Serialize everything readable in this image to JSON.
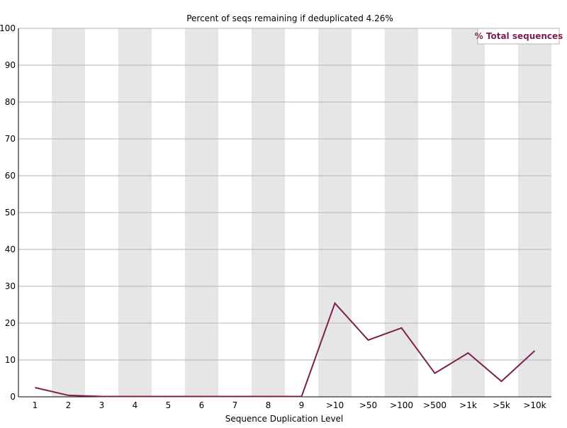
{
  "chart_data": {
    "type": "line",
    "title": "Percent of seqs remaining if deduplicated 4.26%",
    "xlabel": "Sequence Duplication Level",
    "ylabel": "",
    "categories": [
      "1",
      "2",
      "3",
      "4",
      "5",
      "6",
      "7",
      "8",
      "9",
      ">10",
      ">50",
      ">100",
      ">500",
      ">1k",
      ">5k",
      ">10k"
    ],
    "ylim": [
      0,
      100
    ],
    "yticks": [
      0,
      10,
      20,
      30,
      40,
      50,
      60,
      70,
      80,
      90,
      100
    ],
    "grid": true,
    "legend_position": "top-right",
    "series": [
      {
        "name": "% Total sequences",
        "color": "#7f1f4f",
        "values": [
          2.5,
          0.4,
          0.1,
          0.1,
          0.1,
          0.1,
          0.1,
          0.1,
          0.1,
          25.4,
          15.4,
          18.7,
          6.4,
          11.9,
          4.2,
          12.5
        ]
      }
    ],
    "colors": {
      "band": "#e6e6e6",
      "grid": "#b4b4b4",
      "axis": "#000000"
    }
  }
}
